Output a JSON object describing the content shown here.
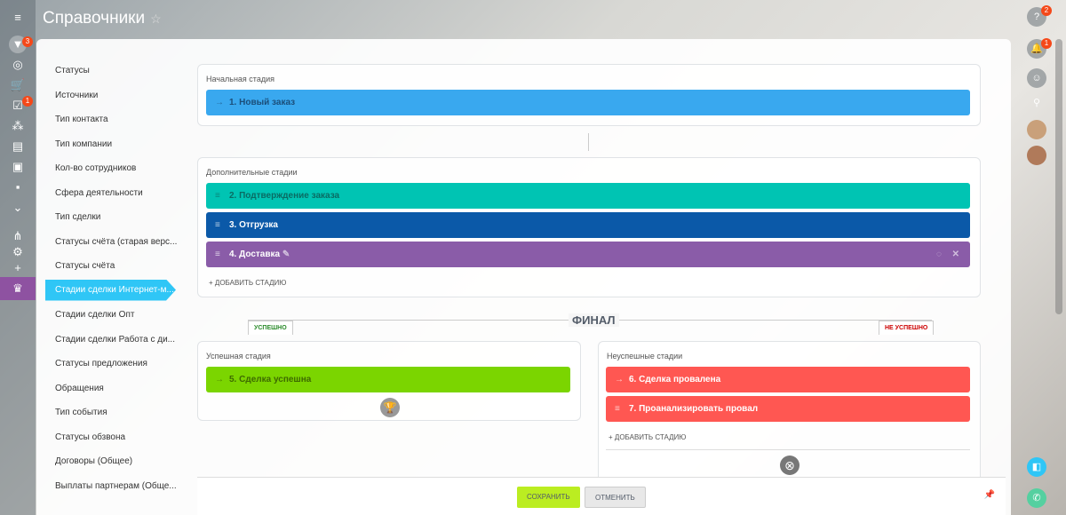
{
  "header": {
    "title": "Справочники"
  },
  "leftbar": {
    "badges": {
      "crm": "3",
      "tasks": "1"
    }
  },
  "menu": [
    "Статусы",
    "Источники",
    "Тип контакта",
    "Тип компании",
    "Кол-во сотрудников",
    "Сфера деятельности",
    "Тип сделки",
    "Статусы счёта (старая верс...",
    "Статусы счёта",
    "Стадии сделки Интернет-м...",
    "Стадии сделки Опт",
    "Стадии сделки Работа с ди...",
    "Статусы предложения",
    "Обращения",
    "Тип события",
    "Статусы обзвона",
    "Договоры (Общее)",
    "Выплаты партнерам (Обще..."
  ],
  "initial": {
    "label": "Начальная стадия",
    "stage": {
      "name": "1. Новый заказ",
      "color": "#39a8ef"
    }
  },
  "extra": {
    "label": "Дополнительные стадии",
    "stages": [
      {
        "name": "2. Подтверждение заказа",
        "color": "#00c4b3"
      },
      {
        "name": "3. Отгрузка",
        "color": "#0b59a8"
      },
      {
        "name": "4. Доставка",
        "color": "#8a5ca8"
      }
    ],
    "add": "+ ДОБАВИТЬ СТАДИЮ"
  },
  "final": {
    "title": "ФИНАЛ",
    "success_tab": "УСПЕШНО",
    "fail_tab": "НЕ УСПЕШНО",
    "success": {
      "label": "Успешная стадия",
      "stage": {
        "name": "5. Сделка успешна",
        "color": "#7bd500"
      }
    },
    "fail": {
      "label": "Неуспешные стадии",
      "stages": [
        {
          "name": "6. Сделка провалена",
          "color": "#ff5752"
        },
        {
          "name": "7. Проанализировать провал",
          "color": "#ff5752"
        }
      ],
      "add": "+ ДОБАВИТЬ СТАДИЮ"
    }
  },
  "footer": {
    "save": "СОХРАНИТЬ",
    "cancel": "ОТМЕНИТЬ"
  },
  "rightbar": {
    "badges": {
      "help": "2",
      "notify": "1"
    }
  }
}
